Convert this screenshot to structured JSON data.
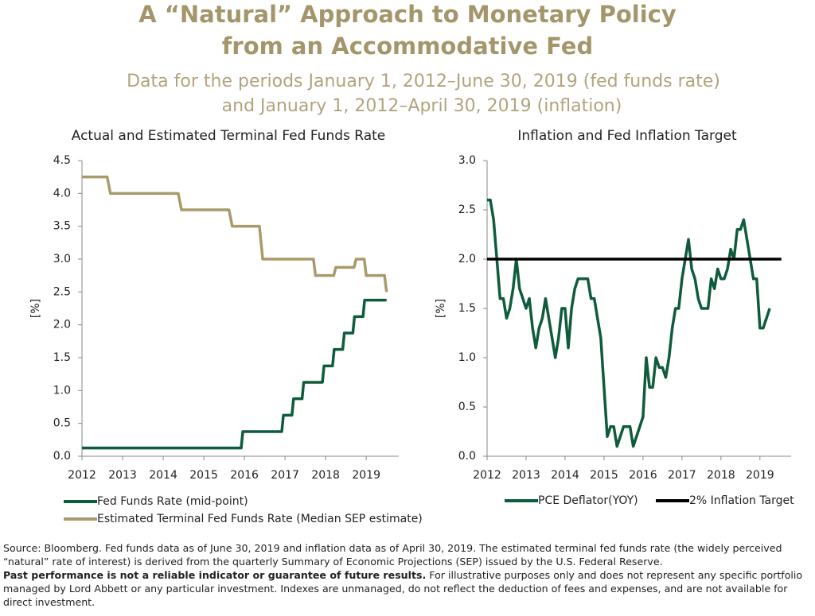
{
  "header": {
    "title": [
      "A “Natural” Approach to Monetary Policy",
      "from an Accommodative Fed"
    ],
    "subtitle": [
      "Data for the periods January 1, 2012–June 30, 2019 (fed funds rate)",
      "and January 1, 2012–April 30, 2019 (inflation)"
    ]
  },
  "chart_data": [
    {
      "type": "line",
      "title": "Actual and Estimated Terminal Fed Funds Rate",
      "ylabel": "[%]",
      "xlim": [
        2012,
        2019.8
      ],
      "xticks": [
        2012,
        2013,
        2014,
        2015,
        2016,
        2017,
        2018,
        2019
      ],
      "ylim": [
        0,
        4.5
      ],
      "yticks": [
        {
          "value": 0,
          "label": "0.0"
        },
        0.5,
        {
          "value": 1,
          "label": "1.0"
        },
        1.5,
        {
          "value": 2,
          "label": "2.0"
        },
        2.5,
        {
          "value": 3,
          "label": "3.0"
        },
        3.5,
        {
          "value": 4,
          "label": "4.0"
        },
        4.5
      ],
      "series": [
        {
          "name": "Fed Funds Rate (mid-point)",
          "color": "#0f5c3c",
          "x": [
            2012,
            2015.92,
            2015.96,
            2016.92,
            2016.96,
            2017.17,
            2017.21,
            2017.42,
            2017.46,
            2017.92,
            2017.96,
            2018.17,
            2018.21,
            2018.42,
            2018.46,
            2018.67,
            2018.71,
            2018.92,
            2018.96,
            2019.5
          ],
          "values": [
            0.125,
            0.125,
            0.375,
            0.375,
            0.625,
            0.625,
            0.875,
            0.875,
            1.125,
            1.125,
            1.375,
            1.375,
            1.625,
            1.625,
            1.875,
            1.875,
            2.125,
            2.125,
            2.375,
            2.375
          ]
        },
        {
          "name": "Estimated Terminal Fed Funds Rate (Median SEP estimate)",
          "color": "#a89a6a",
          "x": [
            2012,
            2012.62,
            2012.7,
            2014.37,
            2014.45,
            2015.62,
            2015.7,
            2016.37,
            2016.45,
            2017.7,
            2017.75,
            2018.2,
            2018.25,
            2018.7,
            2018.75,
            2018.95,
            2019.0,
            2019.45,
            2019.5
          ],
          "values": [
            4.25,
            4.25,
            4.0,
            4.0,
            3.75,
            3.75,
            3.5,
            3.5,
            3.0,
            3.0,
            2.75,
            2.75,
            2.875,
            2.875,
            3.0,
            3.0,
            2.75,
            2.75,
            2.5
          ]
        }
      ]
    },
    {
      "type": "line",
      "title": "Inflation and Fed Inflation Target",
      "ylabel": "[%]",
      "xlim": [
        2012,
        2019.8
      ],
      "xticks": [
        2012,
        2013,
        2014,
        2015,
        2016,
        2017,
        2018,
        2019
      ],
      "ylim": [
        0,
        3
      ],
      "yticks": [
        {
          "value": 0,
          "label": "0.0"
        },
        0.5,
        {
          "value": 1,
          "label": "1.0"
        },
        1.5,
        {
          "value": 2,
          "label": "2.0"
        },
        2.5,
        {
          "value": 3,
          "label": "3.0"
        }
      ],
      "series": [
        {
          "name": "PCE Deflator(YOY)",
          "color": "#0f5c3c",
          "x": [
            2012,
            2012.083,
            2012.167,
            2012.25,
            2012.333,
            2012.417,
            2012.5,
            2012.583,
            2012.667,
            2012.75,
            2012.833,
            2012.917,
            2013,
            2013.083,
            2013.167,
            2013.25,
            2013.333,
            2013.417,
            2013.5,
            2013.583,
            2013.667,
            2013.75,
            2013.833,
            2013.917,
            2014,
            2014.083,
            2014.167,
            2014.25,
            2014.333,
            2014.417,
            2014.5,
            2014.583,
            2014.667,
            2014.75,
            2014.833,
            2014.917,
            2015,
            2015.083,
            2015.167,
            2015.25,
            2015.333,
            2015.417,
            2015.5,
            2015.583,
            2015.667,
            2015.75,
            2015.833,
            2015.917,
            2016,
            2016.083,
            2016.167,
            2016.25,
            2016.333,
            2016.417,
            2016.5,
            2016.583,
            2016.667,
            2016.75,
            2016.833,
            2016.917,
            2017,
            2017.083,
            2017.167,
            2017.25,
            2017.333,
            2017.417,
            2017.5,
            2017.583,
            2017.667,
            2017.75,
            2017.833,
            2017.917,
            2018,
            2018.083,
            2018.167,
            2018.25,
            2018.333,
            2018.417,
            2018.5,
            2018.583,
            2018.667,
            2018.75,
            2018.833,
            2018.917,
            2019,
            2019.083,
            2019.167,
            2019.25
          ],
          "values": [
            2.6,
            2.6,
            2.4,
            2.0,
            1.6,
            1.6,
            1.4,
            1.5,
            1.7,
            2.0,
            1.7,
            1.6,
            1.5,
            1.6,
            1.3,
            1.1,
            1.3,
            1.4,
            1.6,
            1.4,
            1.2,
            1.0,
            1.2,
            1.5,
            1.5,
            1.1,
            1.5,
            1.7,
            1.8,
            1.8,
            1.8,
            1.8,
            1.6,
            1.6,
            1.4,
            1.2,
            0.7,
            0.2,
            0.3,
            0.3,
            0.1,
            0.2,
            0.3,
            0.3,
            0.3,
            0.1,
            0.2,
            0.3,
            0.4,
            1.0,
            0.7,
            0.7,
            1.0,
            0.9,
            0.9,
            0.8,
            1.0,
            1.3,
            1.5,
            1.5,
            1.8,
            2.0,
            2.2,
            1.9,
            1.8,
            1.6,
            1.5,
            1.5,
            1.5,
            1.8,
            1.7,
            1.9,
            1.8,
            1.8,
            1.9,
            2.1,
            2.0,
            2.3,
            2.3,
            2.4,
            2.2,
            2.0,
            1.8,
            1.8,
            1.3,
            1.3,
            1.4,
            1.5
          ]
        },
        {
          "name": "2% Inflation Target",
          "color": "#000000",
          "x": [
            2012,
            2019.55
          ],
          "values": [
            2,
            2
          ]
        }
      ]
    }
  ],
  "footer": {
    "source": "Source: Bloomberg. Fed funds data as of June 30, 2019 and inflation data as of April 30, 2019. The estimated terminal fed funds rate (the widely perceived “natural” rate of interest) is derived from the quarterly Summary of Economic Projections (SEP) issued by the U.S. Federal Reserve.",
    "bold": "Past performance is not a reliable indicator or guarantee of future results.",
    "disclaimer": "For illustrative purposes only and does not represent any specific portfolio managed by Lord Abbett or any particular investment. Indexes are unmanaged, do not reflect the deduction of fees and expenses, and are not available for direct investment."
  }
}
